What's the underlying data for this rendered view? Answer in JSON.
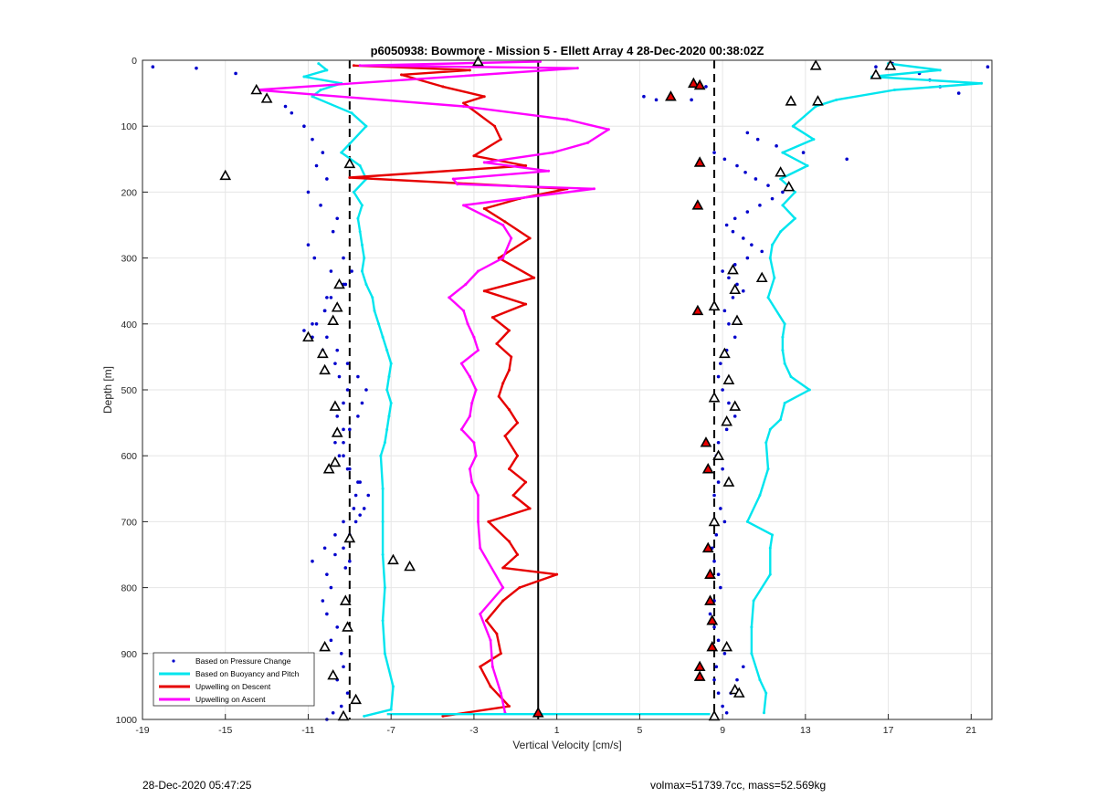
{
  "chart_data": {
    "type": "line",
    "title": "p6050938: Bowmore - Mission 5 - Ellett Array 4 28-Dec-2020 00:38:02Z",
    "xlabel": "Vertical Velocity [cm/s]",
    "ylabel": "Depth [m]",
    "xlim": [
      -19,
      22
    ],
    "ylim": [
      0,
      1000
    ],
    "y_reversed": true,
    "grid": true,
    "legend_position": "bottom-left",
    "x_ticks": [
      -19,
      -15,
      -11,
      -7,
      -3,
      1,
      5,
      9,
      13,
      17,
      21
    ],
    "y_ticks": [
      0,
      100,
      200,
      300,
      400,
      500,
      600,
      700,
      800,
      900,
      1000
    ],
    "reference_lines": {
      "solid_black_x": 0.1,
      "dashed_black_x": [
        -9,
        8.6
      ]
    },
    "series": [
      {
        "name": "Based on Pressure Change",
        "style": "dots",
        "color": "#0000cc",
        "groups": [
          {
            "x": [
              -18.5,
              -16.4,
              -14.5,
              -13.5,
              -13,
              -12.1,
              -11.8,
              -11.2,
              -10.8,
              -10.3,
              -10.6,
              -10.1,
              -11,
              -10.4,
              -9.6,
              -9.8,
              -11,
              -10.7,
              -9.9,
              -9.3,
              -9.9,
              -10.2,
              -10.8,
              -11.2,
              -10.8,
              -10.3,
              -9.7,
              -9.5,
              -9.1,
              -9.3,
              -9.6,
              -9.3,
              -9.3,
              -9.5,
              -9.1,
              -8.6,
              -8.7,
              -8.8,
              -9.3,
              -9.7,
              -10.2,
              -10.8,
              -10.1,
              -9.9,
              -10.3,
              -10.1,
              -9.6,
              -9.9,
              -9.4,
              -9.3,
              -9.6,
              -9.1,
              -9.4,
              -9.8,
              -10.1,
              -9.7,
              -9.2,
              -9,
              -9.3,
              -9,
              -8.7,
              -8.5,
              -8.3,
              -8.1,
              -8.5,
              -9,
              -9.3,
              -9.7,
              -9,
              -8.6,
              -8.4,
              -8.2,
              -8.6,
              -9.1,
              -9.6,
              -10.1,
              -10.6,
              -10.2,
              -10.1,
              -9.2,
              -8.9,
              -9.3
            ],
            "y": [
              10,
              12,
              20,
              45,
              60,
              70,
              80,
              100,
              120,
              140,
              160,
              180,
              200,
              220,
              240,
              260,
              280,
              300,
              320,
              340,
              360,
              380,
              400,
              410,
              420,
              440,
              460,
              480,
              500,
              520,
              540,
              560,
              580,
              600,
              620,
              640,
              660,
              680,
              700,
              720,
              740,
              760,
              780,
              800,
              820,
              840,
              860,
              880,
              900,
              920,
              940,
              960,
              980,
              990,
              1000,
              750,
              770,
              760,
              740,
              720,
              700,
              690,
              680,
              660,
              640,
              620,
              600,
              580,
              560,
              540,
              520,
              500,
              480,
              460,
              440,
              420,
              400,
              380,
              360,
              340,
              320,
              300
            ]
          },
          {
            "x": [
              5.2,
              5.8,
              6.5,
              7.5,
              8.2,
              8.6,
              9.1,
              9.7,
              10.1,
              10.6,
              11.2,
              11.9,
              11.4,
              10.8,
              10.2,
              9.6,
              9.2,
              9.5,
              10,
              10.4,
              10.9,
              10.2,
              9.6,
              9,
              9.3,
              9.7,
              10,
              9.5,
              9.1,
              9.3,
              9.6,
              9.2,
              8.9,
              8.8,
              9,
              9.3,
              9.6,
              9.2,
              8.8,
              8.7,
              9,
              8.8,
              8.6,
              8.9,
              9.1,
              8.7,
              8.5,
              8.6,
              8.8,
              8.9,
              8.6,
              8.4,
              8.6,
              8.8,
              9.1,
              8.7,
              8.6,
              8.8,
              9,
              9.2,
              9.4,
              9.7,
              10,
              10.2,
              10.7,
              11.6,
              12.9,
              15,
              16.4,
              17.2,
              18.5,
              19,
              19.5,
              20.4,
              21.8
            ],
            "y": [
              55,
              60,
              52,
              60,
              40,
              140,
              150,
              160,
              170,
              180,
              190,
              200,
              210,
              220,
              230,
              240,
              250,
              260,
              270,
              280,
              290,
              300,
              310,
              320,
              330,
              340,
              350,
              360,
              380,
              400,
              420,
              440,
              460,
              480,
              500,
              520,
              540,
              560,
              580,
              600,
              620,
              640,
              660,
              680,
              700,
              720,
              740,
              760,
              780,
              800,
              820,
              840,
              860,
              880,
              900,
              920,
              940,
              960,
              980,
              990,
              960,
              940,
              920,
              110,
              120,
              130,
              140,
              150,
              10,
              5,
              20,
              30,
              40,
              50,
              10
            ]
          }
        ]
      },
      {
        "name": "Based on Buoyancy and Pitch",
        "style": "line",
        "color": "#00e5ee",
        "groups": [
          {
            "x": [
              -10.5,
              -10.1,
              -11.2,
              -9.4,
              -10.4,
              -10.8,
              -8.9,
              -8.2,
              -9.4,
              -8.5,
              -8.2,
              -8.8,
              -8.4,
              -8.6,
              -8.5,
              -8.4,
              -8.3,
              -8.4,
              -8.2,
              -7.9,
              -7.8,
              -7.6,
              -7.4,
              -7.2,
              -7,
              -7.1,
              -7.2,
              -7,
              -7.1,
              -7.2,
              -7.3,
              -7.5,
              -7.4,
              -7.4,
              -7.4,
              -7.3,
              -7.4,
              -7.3,
              -6.9,
              -7,
              -8.3
            ],
            "y": [
              5,
              15,
              25,
              35,
              45,
              55,
              80,
              100,
              140,
              160,
              180,
              200,
              220,
              240,
              260,
              280,
              300,
              320,
              340,
              360,
              380,
              400,
              420,
              440,
              460,
              480,
              500,
              520,
              540,
              560,
              580,
              600,
              650,
              700,
              750,
              800,
              850,
              900,
              950,
              985,
              995
            ]
          },
          {
            "x": [
              17,
              19.5,
              16.2,
              21.5,
              17.3,
              14.5,
              13.5,
              12.4,
              13.4,
              11.9,
              13.1,
              11.8,
              12.5,
              11.9,
              12.5,
              11.8,
              11.4,
              11.3,
              11.5,
              11.2,
              12,
              11.9,
              11.9,
              12,
              12.3,
              13.2,
              12,
              11.8,
              11.3,
              11.1,
              11.2,
              10.8,
              10.2,
              11.4,
              11.3,
              11.3,
              10.5,
              10.4,
              10.4,
              10.8,
              11.1,
              11
            ],
            "y": [
              5,
              15,
              25,
              35,
              45,
              60,
              70,
              100,
              120,
              140,
              160,
              180,
              200,
              220,
              240,
              260,
              280,
              300,
              330,
              360,
              400,
              420,
              440,
              460,
              480,
              500,
              520,
              545,
              560,
              580,
              620,
              660,
              700,
              720,
              740,
              780,
              820,
              860,
              900,
              940,
              960,
              990
            ]
          }
        ]
      },
      {
        "name": "Upwelling on Descent",
        "style": "line",
        "color": "#e60000",
        "x": [
          -8.8,
          -3.2,
          -6.5,
          -4.5,
          -2.5,
          -3.5,
          -2,
          -1.7,
          -3,
          -0.5,
          -9,
          1.5,
          -0.8,
          -2.5,
          -1.5,
          -0.3,
          -1.8,
          -0.1,
          -2.5,
          -0.5,
          -2.1,
          -1.3,
          -1.9,
          -1.2,
          -1.3,
          -1.6,
          -1.8,
          -1.3,
          -0.9,
          -1.5,
          -0.9,
          -1.3,
          -0.5,
          -1.1,
          -0.3,
          -2.3,
          -1.3,
          -0.9,
          -1.6,
          1,
          -0.8,
          -1.6,
          -2.4,
          -1.9,
          -1.7,
          -2.7,
          -2.2,
          -1.3,
          -4.5
        ],
        "y": [
          8,
          15,
          22,
          40,
          55,
          65,
          100,
          120,
          145,
          160,
          178,
          195,
          210,
          225,
          245,
          270,
          300,
          330,
          350,
          370,
          390,
          410,
          430,
          450,
          470,
          490,
          510,
          530,
          550,
          570,
          600,
          620,
          640,
          660,
          680,
          700,
          730,
          750,
          770,
          780,
          800,
          820,
          850,
          870,
          900,
          920,
          950,
          980,
          995
        ]
      },
      {
        "name": "Upwelling on Ascent",
        "style": "line",
        "color": "#ff00ff",
        "x": [
          0.2,
          -8.5,
          2,
          -13.5,
          -3.5,
          1.5,
          3.5,
          2.5,
          0.8,
          -2.5,
          0.6,
          -4,
          -3.8,
          2.8,
          -3.5,
          -1.6,
          -1.2,
          -1.6,
          -2.8,
          -3.4,
          -4.2,
          -3.5,
          -3.3,
          -3,
          -2.8,
          -3.6,
          -3.2,
          -2.9,
          -3.1,
          -3.2,
          -3.6,
          -3,
          -2.9,
          -3.2,
          -3.1,
          -2.8,
          -2.8,
          -2.7,
          -1.6,
          -2.7,
          -2.2,
          -2.1,
          -1.7,
          -1.5
        ],
        "y": [
          2,
          8,
          12,
          45,
          70,
          90,
          105,
          125,
          140,
          155,
          168,
          180,
          188,
          195,
          220,
          250,
          270,
          300,
          320,
          340,
          360,
          380,
          400,
          420,
          440,
          460,
          480,
          500,
          520,
          540,
          560,
          580,
          600,
          620,
          640,
          660,
          700,
          740,
          800,
          840,
          880,
          920,
          960,
          990
        ]
      }
    ],
    "bottom_line": {
      "x": [
        -7.2,
        8.4
      ],
      "y": 992
    },
    "triangle_markers": {
      "color": "#000000",
      "x": [
        -2.8,
        -13.5,
        -13,
        -15,
        -9,
        -9.5,
        -9.6,
        -9.8,
        -11,
        -10.3,
        -10.2,
        -9.7,
        -9.6,
        -9.7,
        -10,
        -9,
        -6.9,
        -6.1,
        -9.2,
        -9.1,
        -10.2,
        -9.8,
        -8.7,
        -9.3,
        13.5,
        17.1,
        16.4,
        12.3,
        13.6,
        11.8,
        12.2,
        9.5,
        10.9,
        9.6,
        8.6,
        9.7,
        9.1,
        9.3,
        8.6,
        9.6,
        9.2,
        8.8,
        9.3,
        8.6,
        9.2,
        9.6,
        9.8,
        8.6
      ],
      "y": [
        2,
        45,
        58,
        175,
        157,
        340,
        375,
        395,
        420,
        445,
        470,
        525,
        565,
        610,
        620,
        725,
        758,
        768,
        820,
        860,
        890,
        933,
        970,
        995,
        8,
        8,
        22,
        62,
        62,
        170,
        192,
        318,
        330,
        348,
        373,
        395,
        445,
        485,
        512,
        525,
        548,
        600,
        640,
        700,
        890,
        955,
        960,
        995
      ]
    },
    "red_triangle_markers": {
      "x": [
        0.1,
        7.6,
        7.9,
        6.5,
        7.9,
        7.8,
        7.8,
        8.2,
        8.3,
        8.3,
        8.4,
        8.4,
        8.5,
        8.5,
        7.9,
        7.9
      ],
      "y": [
        990,
        35,
        38,
        55,
        155,
        220,
        380,
        580,
        620,
        740,
        780,
        820,
        850,
        890,
        920,
        935
      ]
    },
    "legend": [
      "Based on Pressure Change",
      "Based on Buoyancy and Pitch",
      "Upwelling on Descent",
      "Upwelling on Ascent"
    ]
  },
  "footer": {
    "timestamp": "28-Dec-2020 05:47:25",
    "info": "volmax=51739.7cc, mass=52.569kg"
  }
}
